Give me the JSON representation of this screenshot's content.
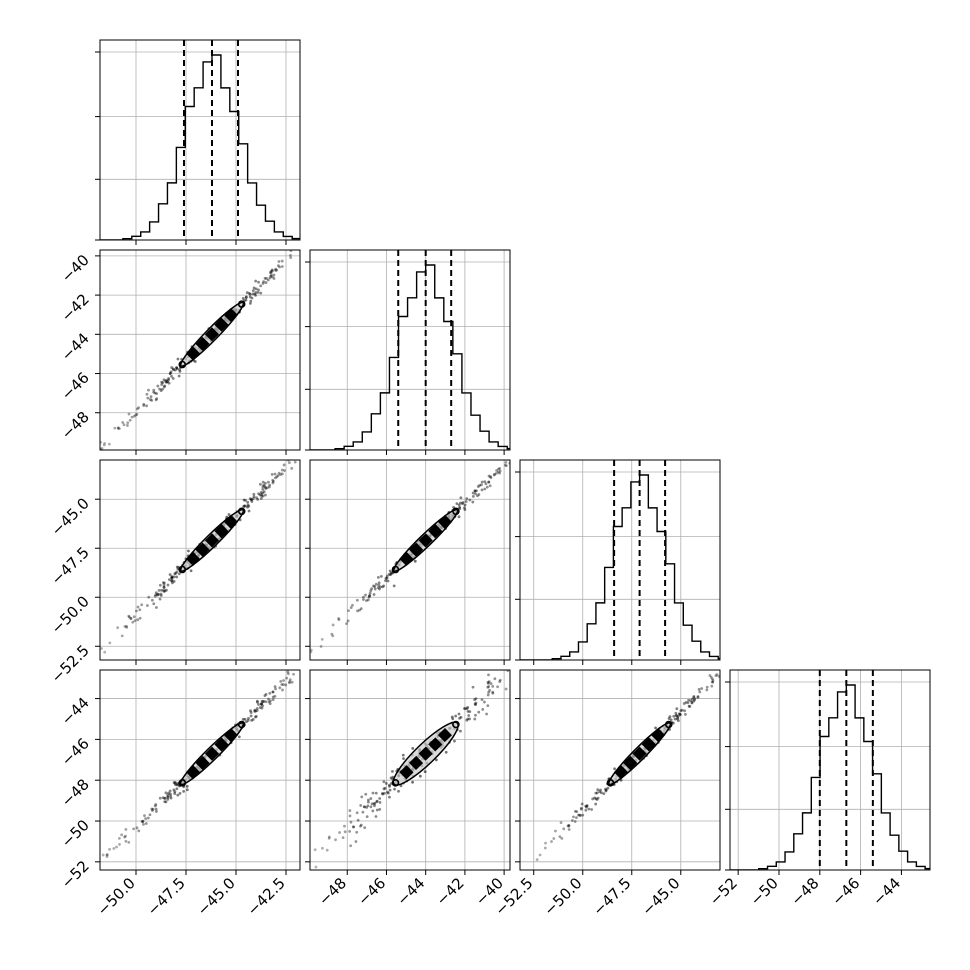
{
  "figure": {
    "kind": "corner-plot",
    "colors": {
      "axes": "#000000",
      "grid": "#b0b0b0",
      "hist": "#000000",
      "quantile": "#000000",
      "density": "#000000",
      "contour_fill": "#cccccc"
    }
  },
  "chart_data": {
    "type": "corner",
    "n_params": 4,
    "parameters": [
      {
        "range": [
          -51.8,
          -41.8
        ],
        "ticks": [
          -50.0,
          -47.5,
          -45.0,
          -42.5
        ],
        "tick_labels": [
          "−50.0",
          "−47.5",
          "−45.0",
          "−42.5"
        ],
        "mean": -46.2,
        "sigma": 1.35,
        "quantiles": [
          -47.6,
          -46.2,
          -44.9
        ]
      },
      {
        "range": [
          -49.9,
          -39.7
        ],
        "ticks": [
          -48,
          -46,
          -44,
          -42,
          -40
        ],
        "tick_labels": [
          "−48",
          "−46",
          "−44",
          "−42",
          "−40"
        ],
        "mean": -44.0,
        "sigma": 1.4,
        "quantiles": [
          -45.4,
          -44.0,
          -42.7
        ]
      },
      {
        "range": [
          -53.2,
          -43.0
        ],
        "ticks": [
          -52.5,
          -50.0,
          -47.5,
          -45.0
        ],
        "tick_labels": [
          "−52.5",
          "−50.0",
          "−47.5",
          "−45.0"
        ],
        "mean": -47.1,
        "sigma": 1.35,
        "quantiles": [
          -48.4,
          -47.1,
          -45.8
        ]
      },
      {
        "range": [
          -52.4,
          -42.6
        ],
        "ticks": [
          -52,
          -50,
          -48,
          -46,
          -44
        ],
        "tick_labels": [
          "−52",
          "−50",
          "−48",
          "−46",
          "−44"
        ],
        "mean": -46.7,
        "sigma": 1.3,
        "quantiles": [
          -48.0,
          -46.7,
          -45.4
        ]
      }
    ],
    "hist_bins": 20,
    "grid": true,
    "quantile_style": "dashed"
  }
}
